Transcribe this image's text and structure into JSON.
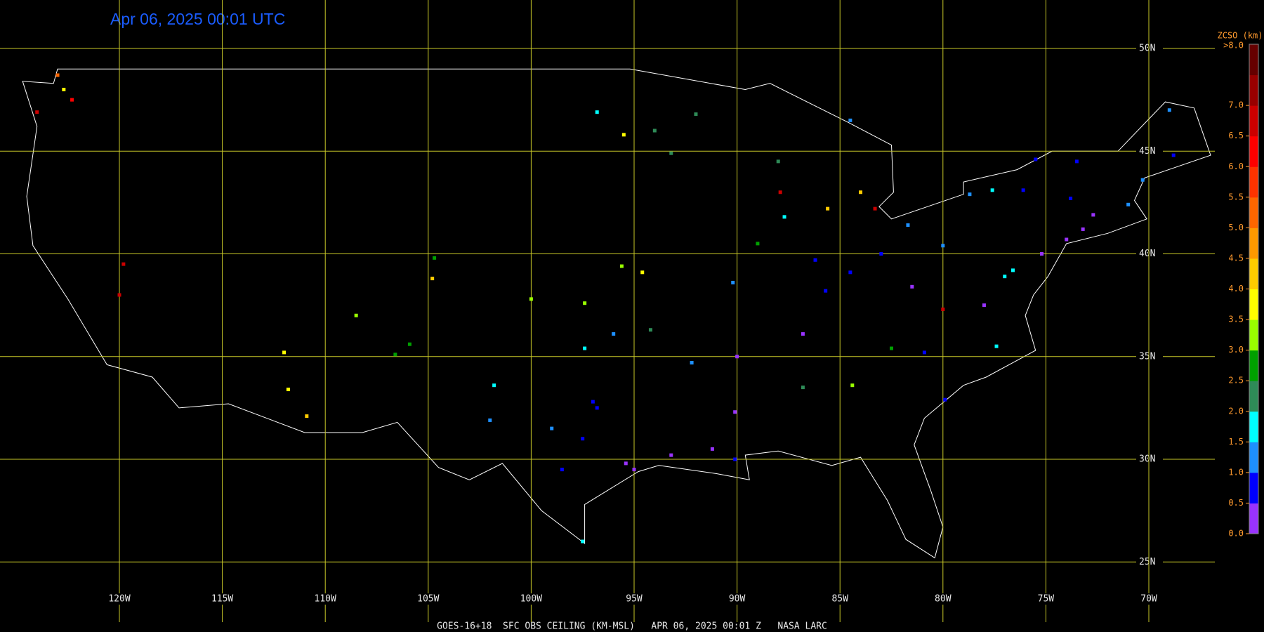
{
  "map": {
    "title": "Apr 06, 2025 00:01 UTC",
    "footer": "GOES-16+18  SFC OBS CEILING (KM-MSL)   APR 06, 2025 00:01 Z   NASA LARC",
    "lat_lines": [
      {
        "value": 50,
        "label": "50N"
      },
      {
        "value": 45,
        "label": "45N"
      },
      {
        "value": 40,
        "label": "40N"
      },
      {
        "value": 35,
        "label": "35N"
      },
      {
        "value": 30,
        "label": "30N"
      },
      {
        "value": 25,
        "label": "25N"
      }
    ],
    "lon_lines": [
      {
        "value": -120,
        "label": "120W"
      },
      {
        "value": -115,
        "label": "115W"
      },
      {
        "value": -110,
        "label": "110W"
      },
      {
        "value": -105,
        "label": "105W"
      },
      {
        "value": -100,
        "label": "100W"
      },
      {
        "value": -95,
        "label": "95W"
      },
      {
        "value": -90,
        "label": "90W"
      },
      {
        "value": -85,
        "label": "85W"
      },
      {
        "value": -80,
        "label": "80W"
      },
      {
        "value": -75,
        "label": "75W"
      },
      {
        "value": -70,
        "label": "70W"
      }
    ],
    "colorbar": {
      "title": "ZCSO (km)",
      "top_label": ">8.0",
      "lim": [
        0,
        8
      ],
      "colors": [
        "#9933ff",
        "#0000ff",
        "#1e90ff",
        "#00ffff",
        "#2e8b57",
        "#00a000",
        "#99ff00",
        "#ffff00",
        "#ffcc00",
        "#ff9900",
        "#ff6600",
        "#ff3300",
        "#ff0000",
        "#cc0000",
        "#990000",
        "#660000"
      ],
      "ticks": [
        {
          "value": 0,
          "label": "0.0"
        },
        {
          "value": 0.5,
          "label": "0.5"
        },
        {
          "value": 1,
          "label": "1.0"
        },
        {
          "value": 1.5,
          "label": "1.5"
        },
        {
          "value": 2,
          "label": "2.0"
        },
        {
          "value": 2.5,
          "label": "2.5"
        },
        {
          "value": 3,
          "label": "3.0"
        },
        {
          "value": 3.5,
          "label": "3.5"
        },
        {
          "value": 4,
          "label": "4.0"
        },
        {
          "value": 4.5,
          "label": "4.5"
        },
        {
          "value": 5,
          "label": "5.0"
        },
        {
          "value": 5.5,
          "label": "5.5"
        },
        {
          "value": 6,
          "label": "6.0"
        },
        {
          "value": 6.5,
          "label": "6.5"
        },
        {
          "value": 7,
          "label": "7.0"
        }
      ]
    },
    "stations": [
      {
        "lon": -97,
        "lat": 32.8,
        "value": 0.8
      },
      {
        "lon": -96.8,
        "lat": 32.5,
        "value": 0.9
      },
      {
        "lon": -97.5,
        "lat": 31,
        "value": 0.8
      },
      {
        "lon": -98.5,
        "lat": 29.5,
        "value": 0.9
      },
      {
        "lon": -95.4,
        "lat": 29.8,
        "value": 0.3
      },
      {
        "lon": -95,
        "lat": 29.5,
        "value": 0.3
      },
      {
        "lon": -97.5,
        "lat": 26,
        "value": 1.7
      },
      {
        "lon": -99,
        "lat": 31.5,
        "value": 1.2
      },
      {
        "lon": -101.8,
        "lat": 33.6,
        "value": 1.8
      },
      {
        "lon": -102,
        "lat": 31.9,
        "value": 1.3
      },
      {
        "lon": -97.4,
        "lat": 35.4,
        "value": 1.6
      },
      {
        "lon": -96,
        "lat": 36.1,
        "value": 1.2
      },
      {
        "lon": -94.6,
        "lat": 39.1,
        "value": 3.7
      },
      {
        "lon": -95.6,
        "lat": 39.4,
        "value": 3.2
      },
      {
        "lon": -97.4,
        "lat": 37.6,
        "value": 3.4
      },
      {
        "lon": -100,
        "lat": 37.8,
        "value": 3.2
      },
      {
        "lon": -104.8,
        "lat": 38.8,
        "value": 4.2
      },
      {
        "lon": -104.7,
        "lat": 39.8,
        "value": 2.6
      },
      {
        "lon": -106.6,
        "lat": 35.1,
        "value": 2.6
      },
      {
        "lon": -105.9,
        "lat": 35.6,
        "value": 2.9
      },
      {
        "lon": -108.5,
        "lat": 37,
        "value": 3.2
      },
      {
        "lon": -111.8,
        "lat": 33.4,
        "value": 3.6
      },
      {
        "lon": -110.9,
        "lat": 32.1,
        "value": 4.1
      },
      {
        "lon": -112,
        "lat": 35.2,
        "value": 3.7
      },
      {
        "lon": -119.8,
        "lat": 39.5,
        "value": 6.8
      },
      {
        "lon": -120,
        "lat": 38,
        "value": 6.8
      },
      {
        "lon": -122.3,
        "lat": 47.5,
        "value": 6.2
      },
      {
        "lon": -123,
        "lat": 48.7,
        "value": 5
      },
      {
        "lon": -124,
        "lat": 46.9,
        "value": 6.7
      },
      {
        "lon": -122.7,
        "lat": 48,
        "value": 3.8
      },
      {
        "lon": -93.2,
        "lat": 44.9,
        "value": 2.3
      },
      {
        "lon": -92,
        "lat": 46.8,
        "value": 2.3
      },
      {
        "lon": -94,
        "lat": 46,
        "value": 2.4
      },
      {
        "lon": -90.2,
        "lat": 38.6,
        "value": 1
      },
      {
        "lon": -89,
        "lat": 40.5,
        "value": 2.8
      },
      {
        "lon": -87.7,
        "lat": 41.8,
        "value": 1.8
      },
      {
        "lon": -86.2,
        "lat": 39.7,
        "value": 0.9
      },
      {
        "lon": -85.7,
        "lat": 38.2,
        "value": 0.7
      },
      {
        "lon": -84.5,
        "lat": 39.1,
        "value": 0.8
      },
      {
        "lon": -83,
        "lat": 40,
        "value": 0.9
      },
      {
        "lon": -81.7,
        "lat": 41.4,
        "value": 1
      },
      {
        "lon": -80,
        "lat": 40.4,
        "value": 1.1
      },
      {
        "lon": -77,
        "lat": 38.9,
        "value": 1.5
      },
      {
        "lon": -76.6,
        "lat": 39.2,
        "value": 1.7
      },
      {
        "lon": -75.2,
        "lat": 40,
        "value": 0.4
      },
      {
        "lon": -74,
        "lat": 40.7,
        "value": 0.3
      },
      {
        "lon": -73.2,
        "lat": 41.2,
        "value": 0.4
      },
      {
        "lon": -71,
        "lat": 42.4,
        "value": 1
      },
      {
        "lon": -72.7,
        "lat": 41.9,
        "value": 0.4
      },
      {
        "lon": -73.8,
        "lat": 42.7,
        "value": 0.8
      },
      {
        "lon": -76.1,
        "lat": 43.1,
        "value": 0.9
      },
      {
        "lon": -78.7,
        "lat": 42.9,
        "value": 1.2
      },
      {
        "lon": -77.6,
        "lat": 43.1,
        "value": 1.6
      },
      {
        "lon": -83.3,
        "lat": 42.2,
        "value": 6.5
      },
      {
        "lon": -84,
        "lat": 43,
        "value": 4.3
      },
      {
        "lon": -85.6,
        "lat": 42.2,
        "value": 4.1
      },
      {
        "lon": -87.9,
        "lat": 43,
        "value": 6.8
      },
      {
        "lon": -90,
        "lat": 35,
        "value": 0.3
      },
      {
        "lon": -86.8,
        "lat": 36.1,
        "value": 0.4
      },
      {
        "lon": -84.4,
        "lat": 33.6,
        "value": 3
      },
      {
        "lon": -86.8,
        "lat": 33.5,
        "value": 2.2
      },
      {
        "lon": -90.1,
        "lat": 32.3,
        "value": 0.4
      },
      {
        "lon": -90.1,
        "lat": 30,
        "value": 0.5
      },
      {
        "lon": -91.2,
        "lat": 30.5,
        "value": 0.4
      },
      {
        "lon": -93.2,
        "lat": 30.2,
        "value": 0.3
      },
      {
        "lon": -92.2,
        "lat": 34.7,
        "value": 1
      },
      {
        "lon": -94.2,
        "lat": 36.3,
        "value": 2.2
      },
      {
        "lon": -84.5,
        "lat": 46.5,
        "value": 1
      },
      {
        "lon": -88,
        "lat": 44.5,
        "value": 2.2
      },
      {
        "lon": -73.5,
        "lat": 44.5,
        "value": 0.8
      },
      {
        "lon": -70.3,
        "lat": 43.6,
        "value": 1.4
      },
      {
        "lon": -68.8,
        "lat": 44.8,
        "value": 0.9
      },
      {
        "lon": -69,
        "lat": 47,
        "value": 1
      },
      {
        "lon": -75.5,
        "lat": 44.6,
        "value": 0.8
      },
      {
        "lon": -81.5,
        "lat": 38.4,
        "value": 0.3
      },
      {
        "lon": -78,
        "lat": 37.5,
        "value": 0.4
      },
      {
        "lon": -80,
        "lat": 37.3,
        "value": 6.8
      },
      {
        "lon": -77.4,
        "lat": 35.5,
        "value": 1.7
      },
      {
        "lon": -80.9,
        "lat": 35.2,
        "value": 0.6
      },
      {
        "lon": -82.5,
        "lat": 35.4,
        "value": 2.5
      },
      {
        "lon": -79.9,
        "lat": 32.9,
        "value": 0.5
      },
      {
        "lon": -95.5,
        "lat": 45.8,
        "value": 3.9
      },
      {
        "lon": -96.8,
        "lat": 46.9,
        "value": 1.8
      }
    ]
  }
}
